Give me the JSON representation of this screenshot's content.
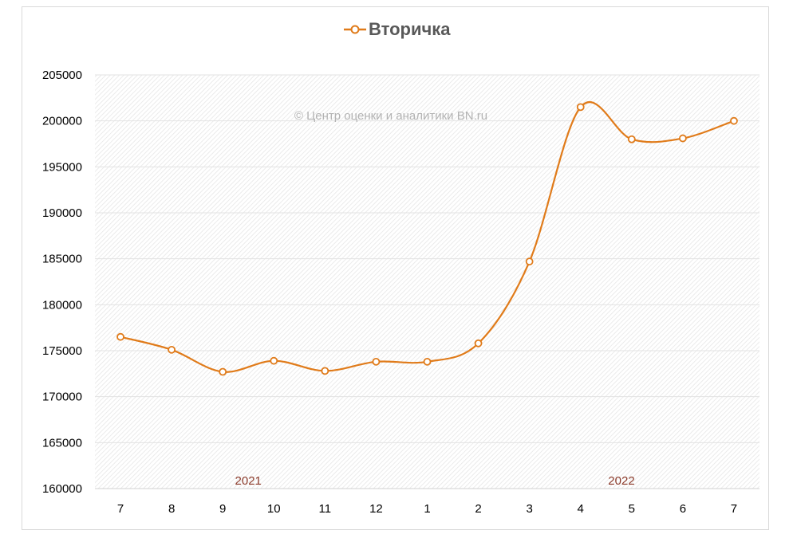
{
  "chart_data": {
    "type": "line",
    "legend": "top",
    "grid": true,
    "ylim": [
      160000,
      205000
    ],
    "ystep": 5000,
    "categories": [
      "7",
      "8",
      "9",
      "10",
      "11",
      "12",
      "1",
      "2",
      "3",
      "4",
      "5",
      "6",
      "7"
    ],
    "series": [
      {
        "name": "Вторичка",
        "color": "#e07b1a",
        "values": [
          176500,
          175100,
          172700,
          173900,
          172800,
          173800,
          173800,
          175800,
          184700,
          201500,
          198000,
          198100,
          200000
        ]
      }
    ],
    "year_labels": [
      {
        "text": "2021",
        "at_index": 2.5
      },
      {
        "text": "2022",
        "at_index": 9.8
      }
    ],
    "watermark": "© Центр оценки и аналитики BN.ru"
  }
}
